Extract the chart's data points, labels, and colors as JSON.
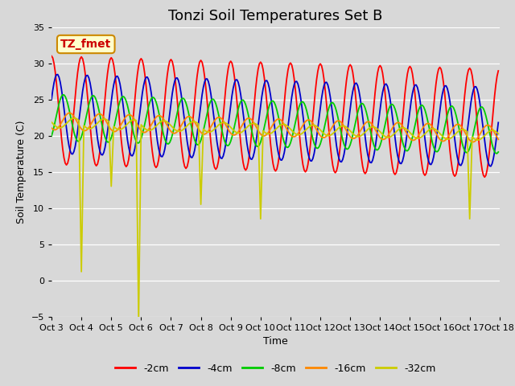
{
  "title": "Tonzi Soil Temperatures Set B",
  "xlabel": "Time",
  "ylabel": "Soil Temperature (C)",
  "ylim": [
    -5,
    35
  ],
  "xlim": [
    0,
    360
  ],
  "xtick_labels": [
    "Oct 3",
    "Oct 4",
    "Oct 5",
    "Oct 6",
    "Oct 7",
    "Oct 8",
    "Oct 9",
    "Oct 10",
    "Oct 11",
    "Oct 12",
    "Oct 13",
    "Oct 14",
    "Oct 15",
    "Oct 16",
    "Oct 17",
    "Oct 18"
  ],
  "series_colors": [
    "#ff0000",
    "#0000cc",
    "#00cc00",
    "#ff8800",
    "#cccc00"
  ],
  "series_labels": [
    "-2cm",
    "-4cm",
    "-8cm",
    "-16cm",
    "-32cm"
  ],
  "annotation_text": "TZ_fmet",
  "annotation_color": "#cc0000",
  "annotation_bg": "#ffffcc",
  "annotation_border": "#cc8800",
  "bg_color": "#d8d8d8",
  "plot_bg": "#d8d8d8",
  "grid_color": "#ffffff",
  "title_fontsize": 13,
  "axis_fontsize": 9,
  "tick_fontsize": 8,
  "legend_fontsize": 9,
  "n_points": 360,
  "period": 24,
  "depth_amplitudes": [
    7.5,
    5.5,
    3.2,
    1.2,
    0.7
  ],
  "depth_means": [
    23.5,
    23.0,
    22.5,
    22.0,
    21.8
  ],
  "depth_phase_shifts": [
    0.0,
    1.2,
    2.5,
    3.8,
    4.8
  ],
  "trend_slope": -0.005,
  "yellow_spike_indices": [
    24,
    48,
    70,
    120,
    168,
    336
  ],
  "yellow_spike_values": [
    1.2,
    13.0,
    -5.5,
    10.5,
    8.5,
    8.5
  ]
}
